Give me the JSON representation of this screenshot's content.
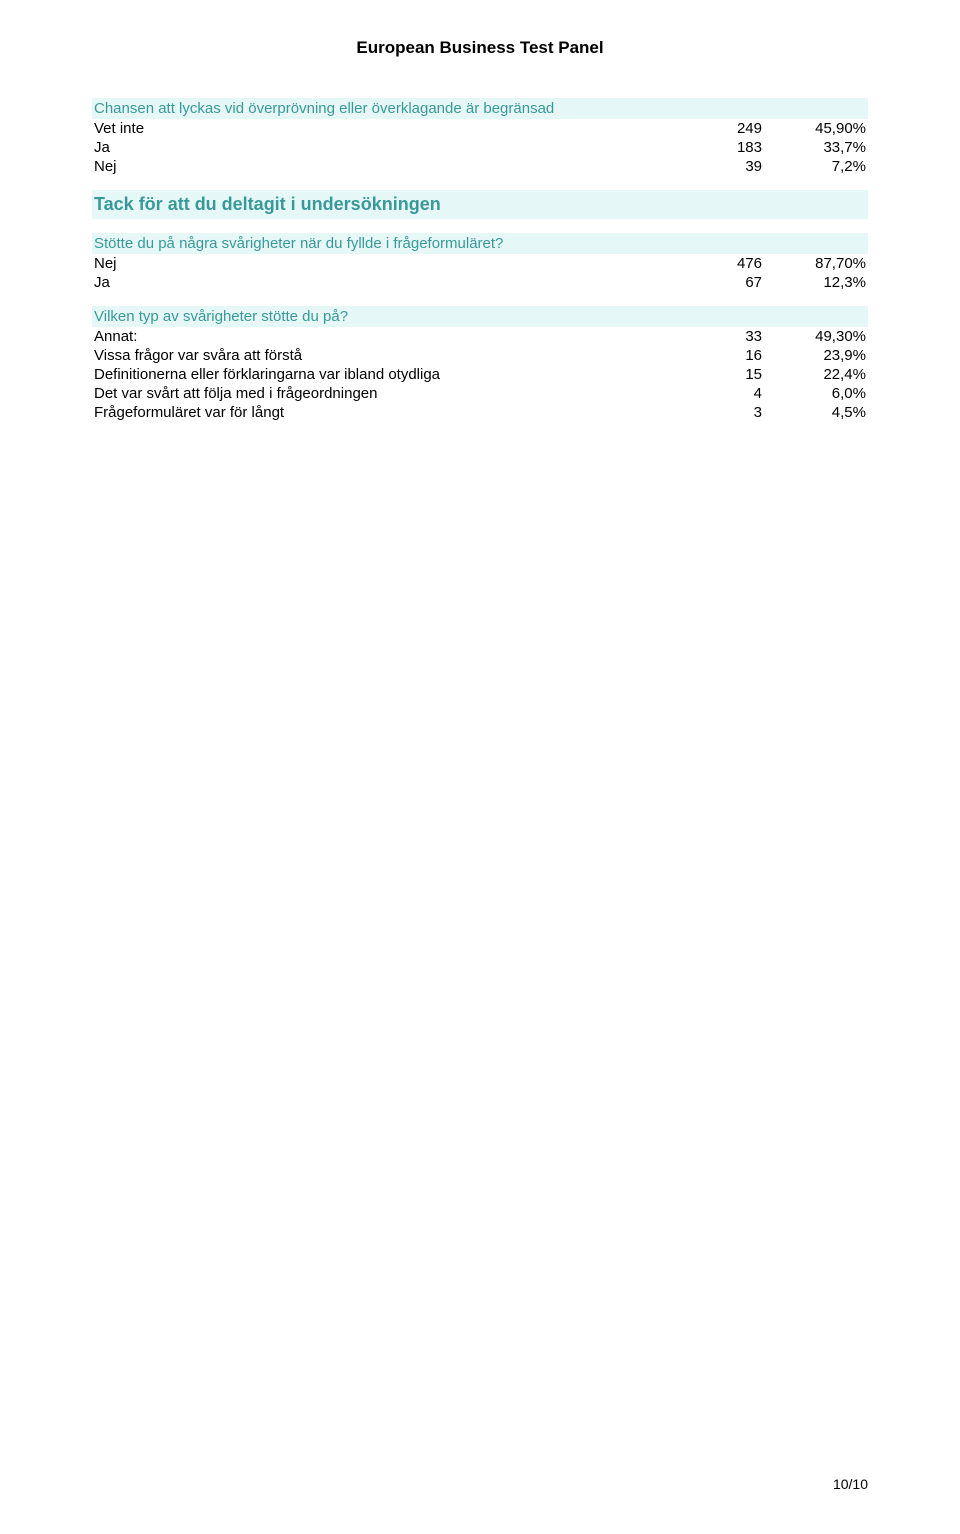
{
  "doc_title": "European Business Test Panel",
  "colors": {
    "accent_text": "#399999",
    "band_bg": "#e6f7f7",
    "text": "#000000",
    "background": "#ffffff"
  },
  "typography": {
    "base_font": "Verdana, Arial, sans-serif",
    "header_size_pt": 17,
    "section_heading_size_pt": 18,
    "body_size_pt": 15
  },
  "q1": {
    "text": "Chansen att lyckas vid överprövning eller överklagande är begränsad",
    "rows": [
      {
        "label": "Vet inte",
        "count": "249",
        "pct": "45,90%"
      },
      {
        "label": "Ja",
        "count": "183",
        "pct": "33,7%"
      },
      {
        "label": "Nej",
        "count": "39",
        "pct": "7,2%"
      }
    ]
  },
  "section_heading": "Tack för att du deltagit i undersökningen",
  "q2": {
    "text": "Stötte du på några svårigheter när du fyllde i frågeformuläret?",
    "rows": [
      {
        "label": "Nej",
        "count": "476",
        "pct": "87,70%"
      },
      {
        "label": "Ja",
        "count": "67",
        "pct": "12,3%"
      }
    ]
  },
  "q3": {
    "text": "Vilken typ av svårigheter stötte du på?",
    "rows": [
      {
        "label": "Annat:",
        "count": "33",
        "pct": "49,30%"
      },
      {
        "label": "Vissa frågor var svåra att förstå",
        "count": "16",
        "pct": "23,9%"
      },
      {
        "label": "Definitionerna eller förklaringarna var ibland otydliga",
        "count": "15",
        "pct": "22,4%"
      },
      {
        "label": "Det var svårt att följa med i frågeordningen",
        "count": "4",
        "pct": "6,0%"
      },
      {
        "label": "Frågeformuläret var för långt",
        "count": "3",
        "pct": "4,5%"
      }
    ]
  },
  "page_number": "10/10"
}
